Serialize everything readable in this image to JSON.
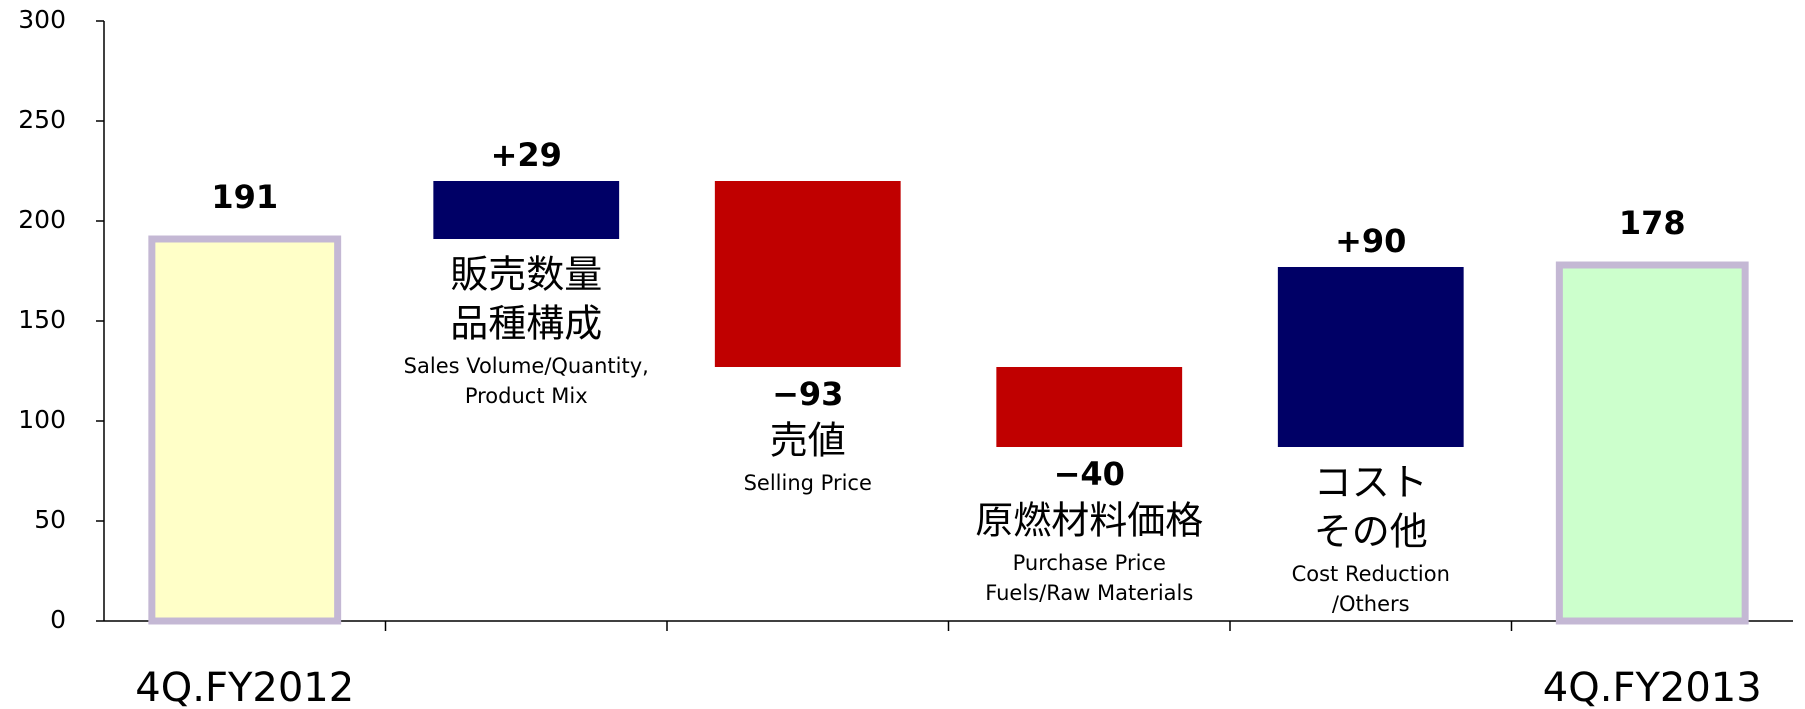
{
  "chart_data": {
    "type": "waterfall",
    "categories": [
      "4Q.FY2012",
      [
        "販売数量",
        "品種構成"
      ],
      [
        "売値"
      ],
      [
        "原燃材料価格"
      ],
      [
        "コスト",
        "その他"
      ],
      "4Q.FY2013"
    ],
    "category_subtitles": [
      null,
      [
        "Sales Volume/Quantity,",
        "Product Mix"
      ],
      [
        "Selling  Price"
      ],
      [
        "Purchase Price",
        "Fuels/Raw Materials"
      ],
      [
        "Cost Reduction",
        "/Others"
      ],
      null
    ],
    "measure": [
      "absolute",
      "relative",
      "relative",
      "relative",
      "relative",
      "absolute"
    ],
    "values": [
      191,
      29,
      -93,
      -40,
      90,
      178
    ],
    "value_labels": [
      "191",
      "+29",
      "−93",
      "−40",
      "+90",
      "178"
    ],
    "colors": [
      "#ffffc8",
      "#000066",
      "#c00000",
      "#c00000",
      "#000066",
      "#ccffcc"
    ],
    "total_edge_color": "#c4b8d4",
    "ylim": [
      0,
      300
    ],
    "yticks": [
      0,
      50,
      100,
      150,
      200,
      250,
      300
    ],
    "grid": false
  }
}
